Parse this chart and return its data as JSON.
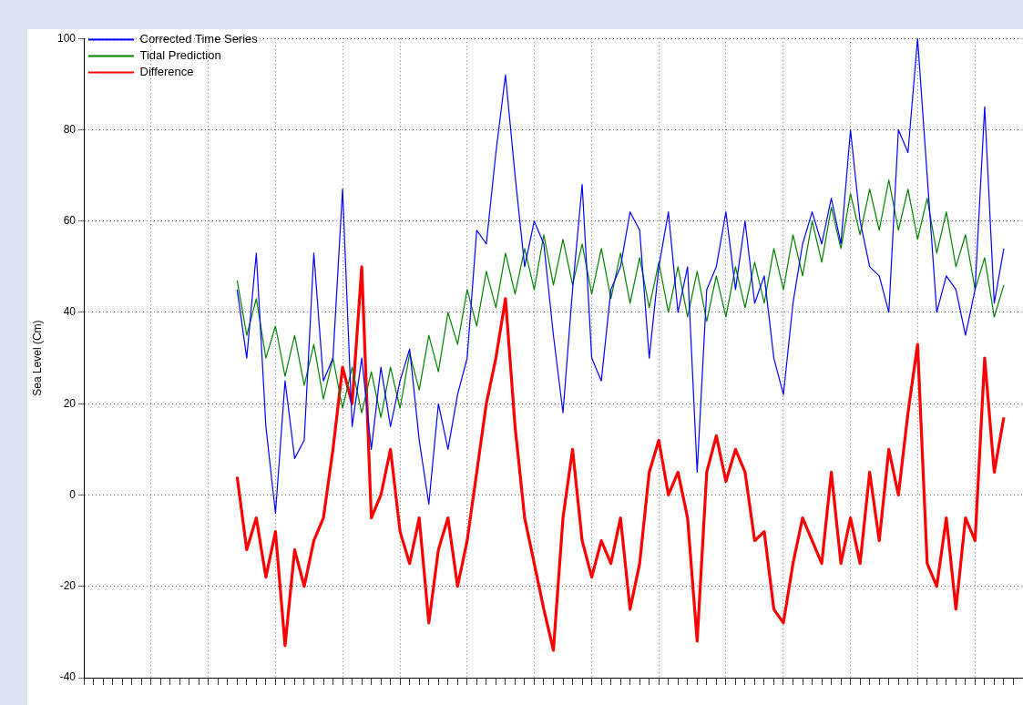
{
  "chart_data": {
    "type": "line",
    "ylabel": "Sea Level (Cm)",
    "categories": [
      null,
      null,
      null,
      null,
      null,
      null,
      null,
      null,
      null,
      null,
      null,
      null,
      null,
      null,
      null,
      null,
      null,
      null,
      null,
      null,
      null,
      null,
      null,
      null,
      null,
      null,
      null,
      null,
      null,
      null,
      null,
      null,
      null,
      null,
      null,
      null,
      null,
      null,
      null,
      null,
      null,
      null,
      null,
      null,
      null,
      null,
      null,
      null,
      null,
      null,
      null,
      null,
      null,
      null,
      null,
      null,
      null,
      null,
      null,
      null,
      null,
      null,
      null,
      null,
      null,
      null,
      null,
      null,
      null,
      null,
      null,
      null,
      null,
      null,
      null,
      null,
      null,
      null,
      null,
      null,
      null,
      null,
      null,
      null,
      null,
      null,
      null,
      null,
      null,
      null,
      null,
      null,
      null,
      null,
      null,
      null,
      null,
      null,
      null
    ],
    "ylim": [
      -40,
      100
    ],
    "yticks": [
      -40,
      -20,
      0,
      20,
      40,
      60,
      80,
      100
    ],
    "tick_labels": "y",
    "grid": true,
    "legend": "top left",
    "marker": "none",
    "line_style": "solid",
    "series": [
      {
        "name": "Corrected Time Series",
        "color": "#0000ff",
        "values": [
          null,
          null,
          null,
          null,
          null,
          null,
          null,
          null,
          null,
          null,
          null,
          null,
          null,
          null,
          null,
          null,
          45,
          30,
          53,
          15,
          -4,
          25,
          8,
          12,
          53,
          25,
          30,
          67,
          15,
          30,
          10,
          28,
          15,
          25,
          32,
          12,
          -2,
          20,
          10,
          22,
          30,
          58,
          55,
          75,
          92,
          70,
          50,
          60,
          55,
          35,
          18,
          45,
          68,
          30,
          25,
          45,
          50,
          62,
          58,
          30,
          50,
          62,
          40,
          50,
          5,
          45,
          50,
          62,
          45,
          60,
          42,
          48,
          30,
          22,
          42,
          55,
          62,
          55,
          65,
          55,
          80,
          60,
          50,
          48,
          40,
          80,
          75,
          100,
          70,
          40,
          48,
          45,
          35,
          45,
          85,
          42,
          54,
          null,
          null
        ]
      },
      {
        "name": "Tidal Prediction",
        "color": "#008000",
        "values": [
          null,
          null,
          null,
          null,
          null,
          null,
          null,
          null,
          null,
          null,
          null,
          null,
          null,
          null,
          null,
          null,
          47,
          35,
          43,
          30,
          37,
          26,
          35,
          24,
          33,
          21,
          30,
          19,
          28,
          18,
          27,
          17,
          28,
          19,
          31,
          23,
          35,
          27,
          40,
          33,
          45,
          37,
          49,
          41,
          53,
          44,
          54,
          45,
          57,
          46,
          56,
          46,
          55,
          44,
          54,
          43,
          53,
          42,
          52,
          41,
          51,
          40,
          50,
          39,
          49,
          38,
          48,
          39,
          50,
          41,
          51,
          42,
          54,
          45,
          57,
          48,
          60,
          51,
          63,
          54,
          66,
          57,
          67,
          58,
          69,
          58,
          67,
          56,
          65,
          53,
          62,
          50,
          57,
          45,
          52,
          39,
          46,
          null,
          null
        ]
      },
      {
        "name": "Difference",
        "color": "#ff0000",
        "values": [
          null,
          null,
          null,
          null,
          null,
          null,
          null,
          null,
          null,
          null,
          null,
          null,
          null,
          null,
          null,
          null,
          4,
          -12,
          -5,
          -18,
          -8,
          -33,
          -12,
          -20,
          -10,
          -5,
          10,
          28,
          20,
          50,
          -5,
          0,
          10,
          -8,
          -15,
          -5,
          -28,
          -12,
          -5,
          -20,
          -10,
          5,
          20,
          30,
          43,
          15,
          -5,
          -15,
          -25,
          -34,
          -5,
          10,
          -10,
          -18,
          -10,
          -15,
          -5,
          -25,
          -15,
          5,
          12,
          0,
          5,
          -5,
          -32,
          5,
          13,
          3,
          10,
          5,
          -10,
          -8,
          -25,
          -28,
          -15,
          -5,
          -10,
          -15,
          5,
          -15,
          -5,
          -15,
          5,
          -10,
          10,
          0,
          18,
          33,
          -15,
          -20,
          -5,
          -25,
          -5,
          -10,
          30,
          5,
          17,
          null,
          null
        ]
      }
    ]
  }
}
